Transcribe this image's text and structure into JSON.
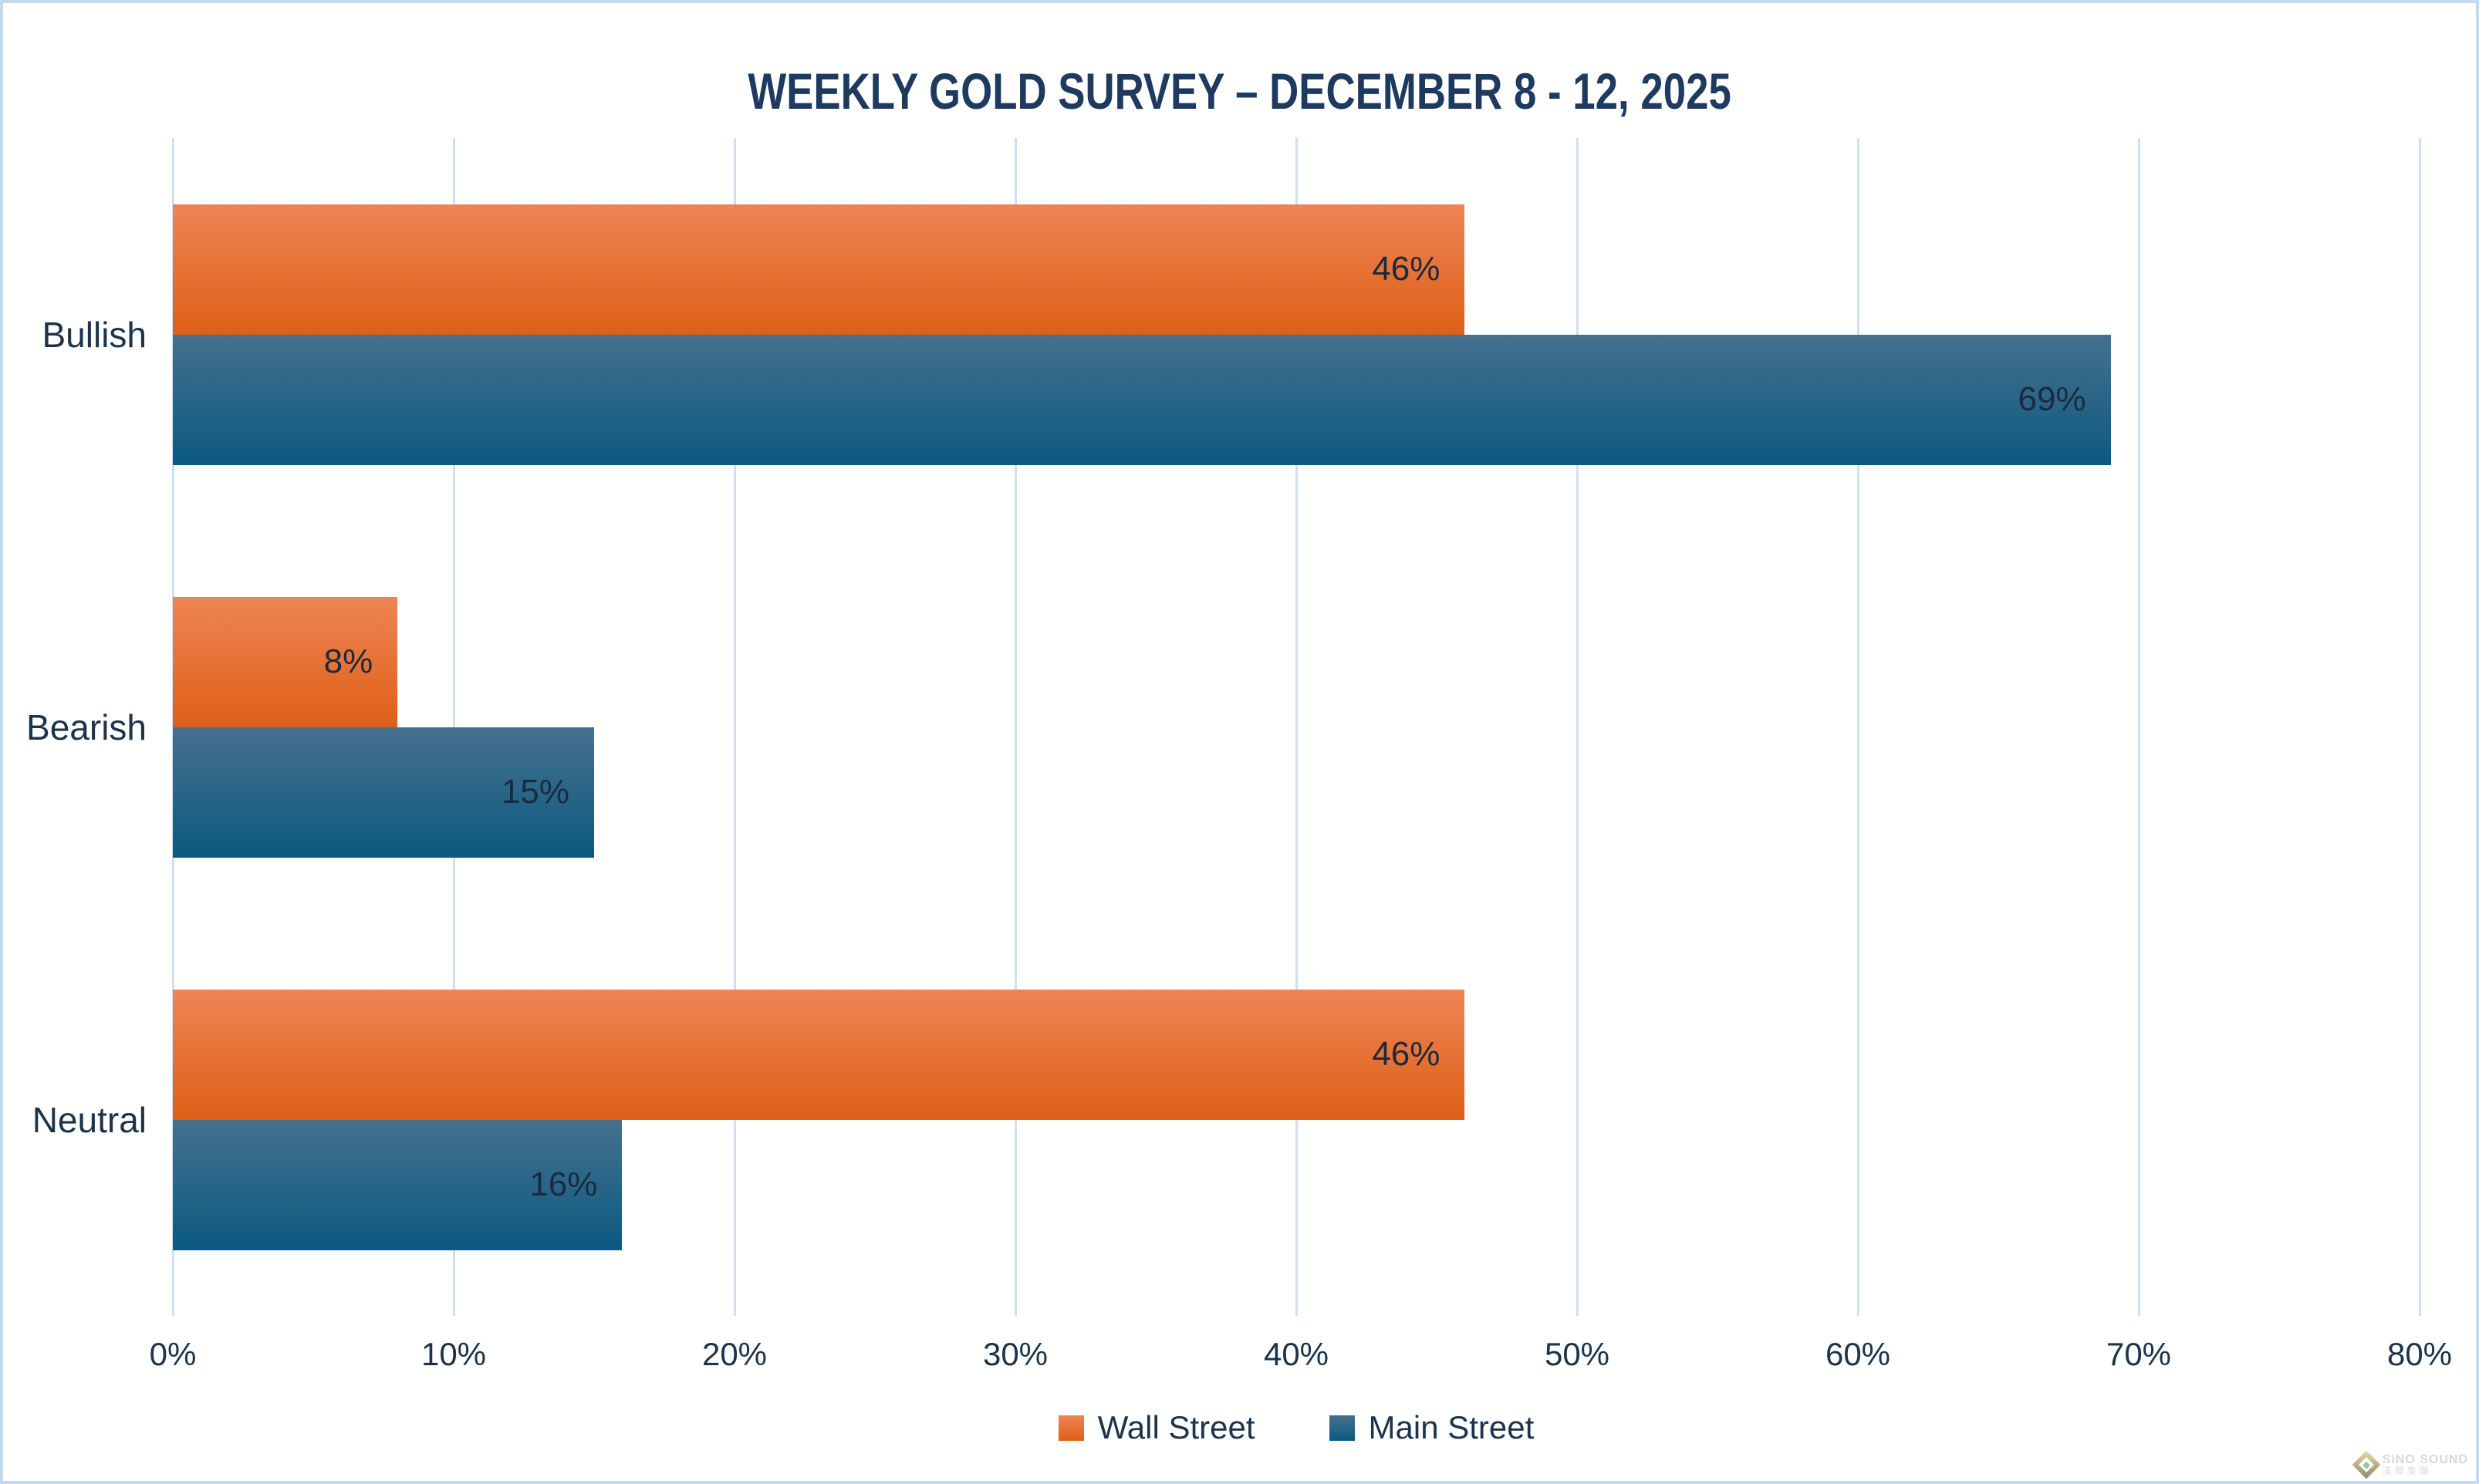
{
  "title": "WEEKLY GOLD SURVEY – DECEMBER 8 - 12, 2025",
  "chart_data": {
    "type": "bar",
    "orientation": "horizontal",
    "title": "WEEKLY GOLD SURVEY – DECEMBER 8 - 12, 2025",
    "categories": [
      "Bullish",
      "Bearish",
      "Neutral"
    ],
    "series": [
      {
        "name": "Wall Street",
        "values": [
          46,
          8,
          46
        ],
        "color_top": "#ee8555",
        "color_bottom": "#de5f17"
      },
      {
        "name": "Main Street",
        "values": [
          69,
          15,
          16
        ],
        "color_top": "#46708f",
        "color_bottom": "#0b5a7f"
      }
    ],
    "value_labels": [
      [
        "46%",
        "8%",
        "46%"
      ],
      [
        "69%",
        "15%",
        "16%"
      ]
    ],
    "value_suffix": "%",
    "xlim": [
      0,
      80
    ],
    "x_ticks": [
      "0%",
      "10%",
      "20%",
      "30%",
      "40%",
      "50%",
      "60%",
      "70%",
      "80%"
    ],
    "grid": "vertical",
    "legend_position": "bottom"
  },
  "colors": {
    "title": "#1e3a5f",
    "labels": "#1c3349",
    "data_label": "#1b2a40",
    "gridline": "#cfe0f2",
    "border": "#c4d9ef",
    "background": "#ffffff"
  },
  "watermark": {
    "line1": "SiNO SOUND",
    "line2": "漢聲集團"
  }
}
